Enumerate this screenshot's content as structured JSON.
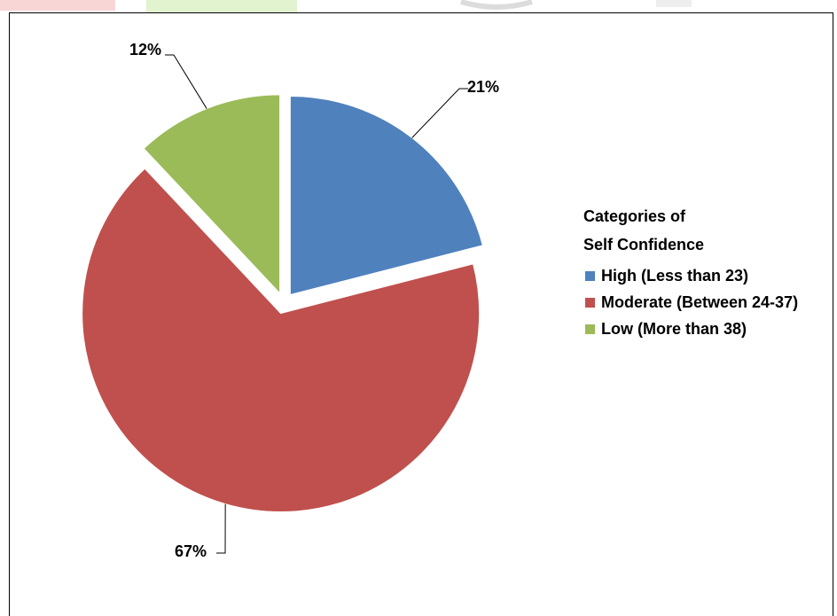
{
  "chart_data": {
    "type": "pie",
    "title": "",
    "categories": [
      "High (Less than 23)",
      "Moderate (Between 24-37)",
      "Low (More than 38)"
    ],
    "values": [
      21,
      67,
      12
    ],
    "data_labels": [
      "21%",
      "67%",
      "12%"
    ],
    "colors": [
      "#4f81bd",
      "#c0504d",
      "#9bbb59"
    ],
    "exploded": true,
    "legend": {
      "placement": "right",
      "title_line1": "Categories of",
      "title_line2": "Self Confidence"
    }
  },
  "watermark_colors": [
    "#f7c7c7",
    "#d9f0c2",
    "#e6e6e6"
  ]
}
